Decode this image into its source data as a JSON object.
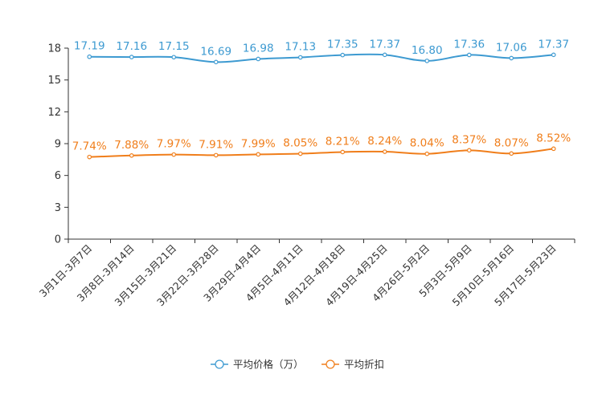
{
  "chart_data": {
    "type": "line",
    "categories": [
      "3月1日-3月7日",
      "3月8日-3月14日",
      "3月15日-3月21日",
      "3月22日-3月28日",
      "3月29日-4月4日",
      "4月5日-4月11日",
      "4月12日-4月18日",
      "4月19日-4月25日",
      "4月26日-5月2日",
      "5月3日-5月9日",
      "5月10日-5月16日",
      "5月17日-5月23日"
    ],
    "ylim": [
      0,
      18
    ],
    "yticks": [
      0,
      3,
      6,
      9,
      12,
      15,
      18
    ],
    "grid": false,
    "legend_position": "bottom-center",
    "series": [
      {
        "name": "平均价格（万）",
        "color": "#3d9ad1",
        "values": [
          17.19,
          17.16,
          17.15,
          16.69,
          16.98,
          17.13,
          17.35,
          17.37,
          16.8,
          17.36,
          17.06,
          17.37
        ],
        "labels": [
          "17.19",
          "17.16",
          "17.15",
          "16.69",
          "16.98",
          "17.13",
          "17.35",
          "17.37",
          "16.80",
          "17.36",
          "17.06",
          "17.37"
        ]
      },
      {
        "name": "平均折扣",
        "color": "#f07e1b",
        "values": [
          7.74,
          7.88,
          7.97,
          7.91,
          7.99,
          8.05,
          8.21,
          8.24,
          8.04,
          8.37,
          8.07,
          8.52
        ],
        "labels": [
          "7.74%",
          "7.88%",
          "7.97%",
          "7.91%",
          "7.99%",
          "8.05%",
          "8.21%",
          "8.24%",
          "8.04%",
          "8.37%",
          "8.07%",
          "8.52%"
        ]
      }
    ]
  }
}
